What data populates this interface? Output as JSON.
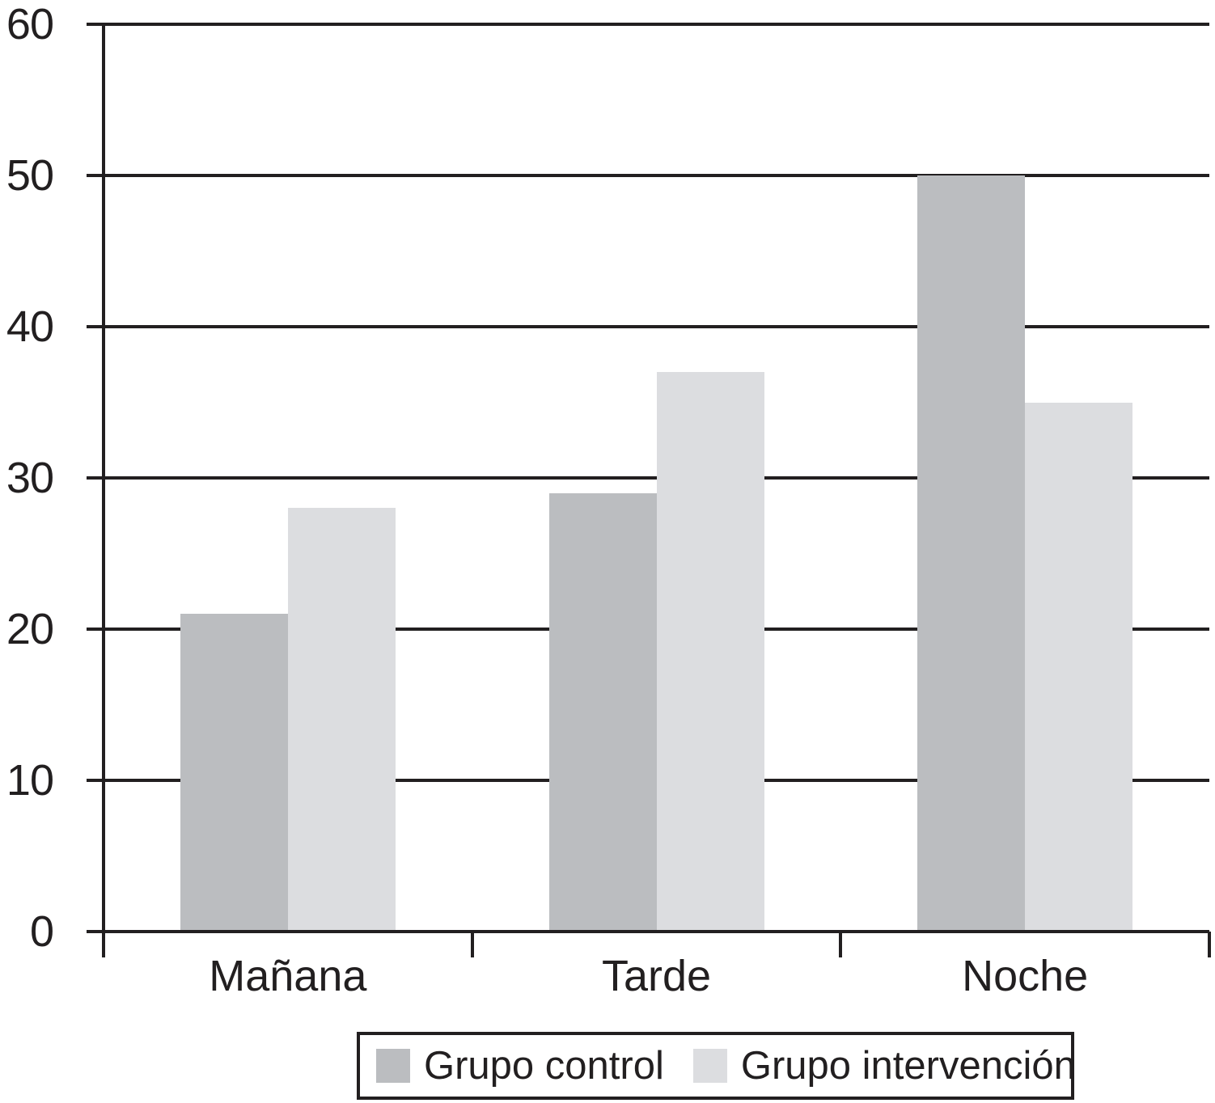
{
  "chart_data": {
    "type": "bar",
    "categories": [
      "Mañana",
      "Tarde",
      "Noche"
    ],
    "series": [
      {
        "name": "Grupo control",
        "color": "#bbbdc0",
        "values": [
          21,
          29,
          50
        ]
      },
      {
        "name": "Grupo intervención",
        "color": "#dcdde0",
        "values": [
          28,
          37,
          35
        ]
      }
    ],
    "title": "",
    "xlabel": "",
    "ylabel": "",
    "ylim": [
      0,
      60
    ],
    "yticks": [
      0,
      10,
      20,
      30,
      40,
      50,
      60
    ],
    "grid": true,
    "legend_position": "bottom",
    "axis_color": "#221f20",
    "background": "#ffffff"
  }
}
